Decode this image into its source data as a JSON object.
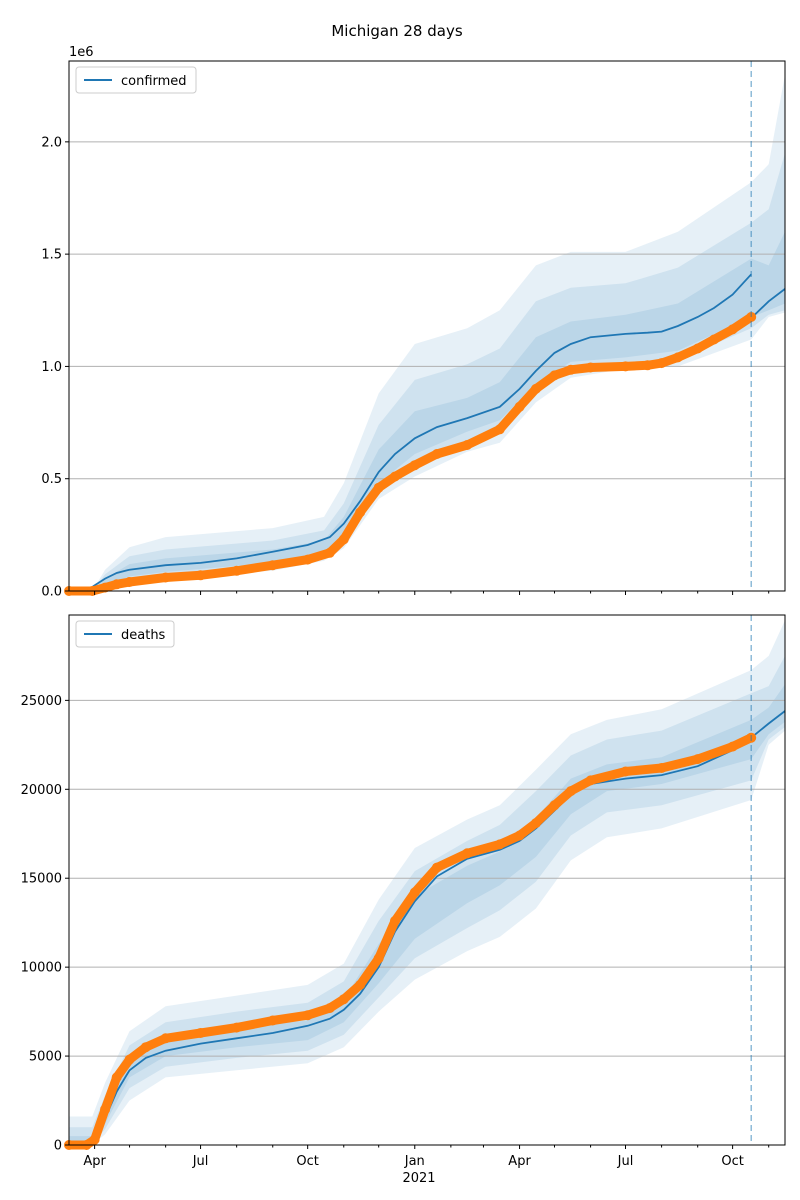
{
  "figure": {
    "title": "Michigan 28 days"
  },
  "colors": {
    "model": "#1f77b4",
    "observed": "#ff7f0e",
    "grid": "#b0b0b0",
    "band": "#1f77b4"
  },
  "x_axis": {
    "tick_labels": [
      "Apr",
      "Jul",
      "Oct",
      "Jan",
      "Apr",
      "Jul",
      "Oct"
    ],
    "tick_dates": [
      "2020-04-01",
      "2020-07-01",
      "2020-10-01",
      "2021-01-01",
      "2021-04-01",
      "2021-07-01",
      "2021-10-01"
    ],
    "year_label": "2021",
    "range": [
      "2020-03-10",
      "2021-11-15"
    ]
  },
  "chart_data": [
    {
      "type": "line",
      "legend": "confirmed",
      "legend_position": "upper-left",
      "offset_text": "1e6",
      "yticks": [
        "0.0",
        "0.5",
        "1.0",
        "1.5",
        "2.0"
      ],
      "ytick_values": [
        0,
        500000,
        1000000,
        1500000,
        2000000
      ],
      "ylim": [
        0,
        2360000
      ],
      "grid": "horizontal",
      "forecast_start": "2021-10-17",
      "series": [
        {
          "name": "confirmed",
          "role": "model",
          "x": [
            "2020-03-10",
            "2020-03-25",
            "2020-04-01",
            "2020-04-10",
            "2020-04-20",
            "2020-05-01",
            "2020-06-01",
            "2020-07-01",
            "2020-08-01",
            "2020-09-01",
            "2020-10-01",
            "2020-10-20",
            "2020-11-01",
            "2020-11-15",
            "2020-12-01",
            "2020-12-15",
            "2021-01-01",
            "2021-01-20",
            "2021-02-15",
            "2021-03-15",
            "2021-04-01",
            "2021-04-15",
            "2021-05-01",
            "2021-05-15",
            "2021-06-01",
            "2021-07-01",
            "2021-07-20",
            "2021-08-01",
            "2021-08-15",
            "2021-09-01",
            "2021-09-15",
            "2021-10-01",
            "2021-10-17"
          ],
          "values": [
            0,
            0,
            25000,
            55000,
            80000,
            95000,
            115000,
            125000,
            145000,
            175000,
            205000,
            240000,
            300000,
            400000,
            530000,
            610000,
            680000,
            730000,
            770000,
            820000,
            900000,
            980000,
            1060000,
            1100000,
            1130000,
            1145000,
            1150000,
            1155000,
            1180000,
            1220000,
            1260000,
            1320000,
            1410000
          ]
        },
        {
          "name": "",
          "role": "forecast",
          "x": [
            "2021-10-17",
            "2021-11-01",
            "2021-11-15"
          ],
          "values": [
            1215000,
            1290000,
            1345000
          ]
        },
        {
          "name": "",
          "role": "observed",
          "x": [
            "2020-03-10",
            "2020-03-30",
            "2020-04-10",
            "2020-04-20",
            "2020-05-01",
            "2020-06-01",
            "2020-07-01",
            "2020-08-01",
            "2020-09-01",
            "2020-10-01",
            "2020-10-20",
            "2020-11-01",
            "2020-11-15",
            "2020-12-01",
            "2020-12-15",
            "2021-01-01",
            "2021-01-20",
            "2021-02-15",
            "2021-03-15",
            "2021-04-01",
            "2021-04-15",
            "2021-05-01",
            "2021-05-15",
            "2021-06-01",
            "2021-07-01",
            "2021-07-20",
            "2021-08-01",
            "2021-08-15",
            "2021-09-01",
            "2021-09-15",
            "2021-10-01",
            "2021-10-17"
          ],
          "values": [
            0,
            0,
            15000,
            30000,
            40000,
            60000,
            70000,
            90000,
            115000,
            140000,
            170000,
            230000,
            350000,
            460000,
            510000,
            560000,
            610000,
            650000,
            720000,
            820000,
            900000,
            960000,
            985000,
            995000,
            1000000,
            1005000,
            1015000,
            1040000,
            1080000,
            1120000,
            1165000,
            1220000
          ]
        }
      ],
      "bands": [
        {
          "x": [
            "2020-03-10",
            "2020-03-30",
            "2020-04-10",
            "2020-05-01",
            "2020-06-01",
            "2020-09-01",
            "2020-10-15",
            "2020-11-01",
            "2020-12-01",
            "2021-01-01",
            "2021-02-15",
            "2021-03-15",
            "2021-04-15",
            "2021-05-15",
            "2021-07-01",
            "2021-08-15",
            "2021-10-17",
            "2021-11-01",
            "2021-11-15"
          ],
          "lower": [
            0,
            0,
            10000,
            40000,
            55000,
            90000,
            135000,
            190000,
            410000,
            510000,
            620000,
            660000,
            840000,
            950000,
            990000,
            1000000,
            1120000,
            1220000,
            1240000
          ],
          "upper": [
            0,
            0,
            95000,
            195000,
            240000,
            280000,
            330000,
            480000,
            880000,
            1100000,
            1170000,
            1250000,
            1450000,
            1510000,
            1510000,
            1600000,
            1820000,
            1900000,
            2300000
          ]
        },
        {
          "x": [
            "2020-03-10",
            "2020-03-30",
            "2020-04-10",
            "2020-05-01",
            "2020-06-01",
            "2020-09-01",
            "2020-10-15",
            "2020-11-01",
            "2020-12-01",
            "2021-01-01",
            "2021-02-15",
            "2021-03-15",
            "2021-04-15",
            "2021-05-15",
            "2021-07-01",
            "2021-08-15",
            "2021-10-17",
            "2021-11-01",
            "2021-11-15"
          ],
          "lower": [
            0,
            0,
            15000,
            50000,
            70000,
            105000,
            150000,
            215000,
            440000,
            560000,
            670000,
            710000,
            880000,
            985000,
            1010000,
            1030000,
            1170000,
            1230000,
            1250000
          ],
          "upper": [
            0,
            0,
            75000,
            155000,
            185000,
            225000,
            270000,
            390000,
            740000,
            940000,
            1010000,
            1080000,
            1290000,
            1350000,
            1370000,
            1440000,
            1640000,
            1700000,
            1950000
          ]
        },
        {
          "x": [
            "2020-03-10",
            "2020-03-30",
            "2020-04-10",
            "2020-05-01",
            "2020-06-01",
            "2020-09-01",
            "2020-10-15",
            "2020-11-01",
            "2020-12-01",
            "2021-01-01",
            "2021-02-15",
            "2021-03-15",
            "2021-04-15",
            "2021-05-15",
            "2021-07-01",
            "2021-08-15",
            "2021-10-17",
            "2021-11-01",
            "2021-11-15"
          ],
          "lower": [
            0,
            0,
            20000,
            65000,
            85000,
            125000,
            170000,
            245000,
            480000,
            610000,
            710000,
            760000,
            920000,
            1020000,
            1040000,
            1070000,
            1220000,
            1250000,
            1280000
          ],
          "upper": [
            0,
            0,
            55000,
            120000,
            145000,
            185000,
            225000,
            330000,
            630000,
            800000,
            860000,
            930000,
            1130000,
            1200000,
            1230000,
            1280000,
            1480000,
            1450000,
            1600000
          ]
        }
      ]
    },
    {
      "type": "line",
      "legend": "deaths",
      "legend_position": "upper-left",
      "yticks": [
        "0",
        "5000",
        "10000",
        "15000",
        "20000",
        "25000"
      ],
      "ytick_values": [
        0,
        5000,
        10000,
        15000,
        20000,
        25000
      ],
      "ylim": [
        0,
        29800
      ],
      "grid": "horizontal",
      "forecast_start": "2021-10-17",
      "series": [
        {
          "name": "deaths",
          "role": "model",
          "x": [
            "2020-03-10",
            "2020-03-30",
            "2020-04-10",
            "2020-04-20",
            "2020-05-01",
            "2020-05-15",
            "2020-06-01",
            "2020-07-01",
            "2020-08-01",
            "2020-09-01",
            "2020-10-01",
            "2020-10-20",
            "2020-11-01",
            "2020-11-15",
            "2020-12-01",
            "2020-12-15",
            "2021-01-01",
            "2021-01-20",
            "2021-02-15",
            "2021-03-15",
            "2021-04-01",
            "2021-04-15",
            "2021-05-01",
            "2021-05-15",
            "2021-06-01",
            "2021-07-01",
            "2021-08-01",
            "2021-09-01",
            "2021-10-01",
            "2021-10-17"
          ],
          "values": [
            0,
            0,
            1500,
            3000,
            4200,
            4900,
            5300,
            5700,
            6000,
            6300,
            6700,
            7100,
            7600,
            8500,
            10000,
            12000,
            13700,
            15100,
            16100,
            16600,
            17100,
            17800,
            18800,
            19700,
            20300,
            20600,
            20800,
            21300,
            22200,
            22900
          ]
        },
        {
          "name": "",
          "role": "forecast",
          "x": [
            "2021-10-17",
            "2021-11-01",
            "2021-11-15"
          ],
          "values": [
            22900,
            23700,
            24400
          ]
        },
        {
          "name": "",
          "role": "observed",
          "x": [
            "2020-03-10",
            "2020-03-25",
            "2020-04-01",
            "2020-04-10",
            "2020-04-20",
            "2020-05-01",
            "2020-05-15",
            "2020-06-01",
            "2020-07-01",
            "2020-08-01",
            "2020-09-01",
            "2020-10-01",
            "2020-10-20",
            "2020-11-01",
            "2020-11-15",
            "2020-12-01",
            "2020-12-15",
            "2021-01-01",
            "2021-01-20",
            "2021-02-15",
            "2021-03-15",
            "2021-04-01",
            "2021-04-15",
            "2021-05-01",
            "2021-05-15",
            "2021-06-01",
            "2021-07-01",
            "2021-08-01",
            "2021-09-01",
            "2021-10-01",
            "2021-10-17"
          ],
          "values": [
            0,
            0,
            300,
            2000,
            3800,
            4800,
            5500,
            6000,
            6300,
            6600,
            7000,
            7300,
            7700,
            8200,
            9000,
            10500,
            12600,
            14200,
            15600,
            16400,
            16900,
            17400,
            18100,
            19100,
            19900,
            20500,
            21000,
            21200,
            21700,
            22400,
            22900
          ]
        }
      ],
      "bands": [
        {
          "x": [
            "2020-03-10",
            "2020-03-30",
            "2020-04-10",
            "2020-05-01",
            "2020-06-01",
            "2020-08-01",
            "2020-10-01",
            "2020-11-01",
            "2020-12-01",
            "2021-01-01",
            "2021-02-15",
            "2021-03-15",
            "2021-04-15",
            "2021-05-15",
            "2021-06-15",
            "2021-08-01",
            "2021-10-17",
            "2021-11-01",
            "2021-11-15"
          ],
          "lower": [
            0,
            0,
            600,
            2500,
            3800,
            4200,
            4600,
            5500,
            7500,
            9300,
            10900,
            11700,
            13300,
            16000,
            17300,
            17800,
            19400,
            22500,
            23300
          ],
          "upper": [
            1600,
            1600,
            3500,
            6400,
            7800,
            8400,
            9000,
            10200,
            13800,
            16700,
            18300,
            19100,
            21100,
            23100,
            23900,
            24500,
            26700,
            27500,
            29500
          ]
        },
        {
          "x": [
            "2020-03-10",
            "2020-03-30",
            "2020-04-10",
            "2020-05-01",
            "2020-06-01",
            "2020-08-01",
            "2020-10-01",
            "2020-11-01",
            "2020-12-01",
            "2021-01-01",
            "2021-02-15",
            "2021-03-15",
            "2021-04-15",
            "2021-05-15",
            "2021-06-15",
            "2021-08-01",
            "2021-10-17",
            "2021-11-01",
            "2021-11-15"
          ],
          "lower": [
            0,
            0,
            900,
            3200,
            4400,
            4900,
            5300,
            6200,
            8300,
            10500,
            12200,
            13200,
            14800,
            17400,
            18700,
            19100,
            20500,
            22800,
            23500
          ],
          "upper": [
            1000,
            1000,
            2800,
            5600,
            6900,
            7500,
            8000,
            9200,
            12600,
            15400,
            17100,
            18000,
            19900,
            21900,
            22800,
            23300,
            25400,
            25800,
            27500
          ]
        },
        {
          "x": [
            "2020-03-10",
            "2020-03-30",
            "2020-04-10",
            "2020-05-01",
            "2020-06-01",
            "2020-08-01",
            "2020-10-01",
            "2020-11-01",
            "2020-12-01",
            "2021-01-01",
            "2021-02-15",
            "2021-03-15",
            "2021-04-15",
            "2021-05-15",
            "2021-06-15",
            "2021-08-01",
            "2021-10-17",
            "2021-11-01",
            "2021-11-15"
          ],
          "lower": [
            0,
            0,
            1200,
            3800,
            5000,
            5500,
            5900,
            6900,
            9100,
            11600,
            13600,
            14600,
            16200,
            18600,
            19900,
            20300,
            21700,
            23100,
            23800
          ],
          "upper": [
            500,
            500,
            2200,
            4900,
            6100,
            6600,
            7000,
            8200,
            11300,
            14000,
            15700,
            16500,
            18400,
            20600,
            21400,
            21800,
            23900,
            24600,
            25900
          ]
        }
      ]
    }
  ]
}
